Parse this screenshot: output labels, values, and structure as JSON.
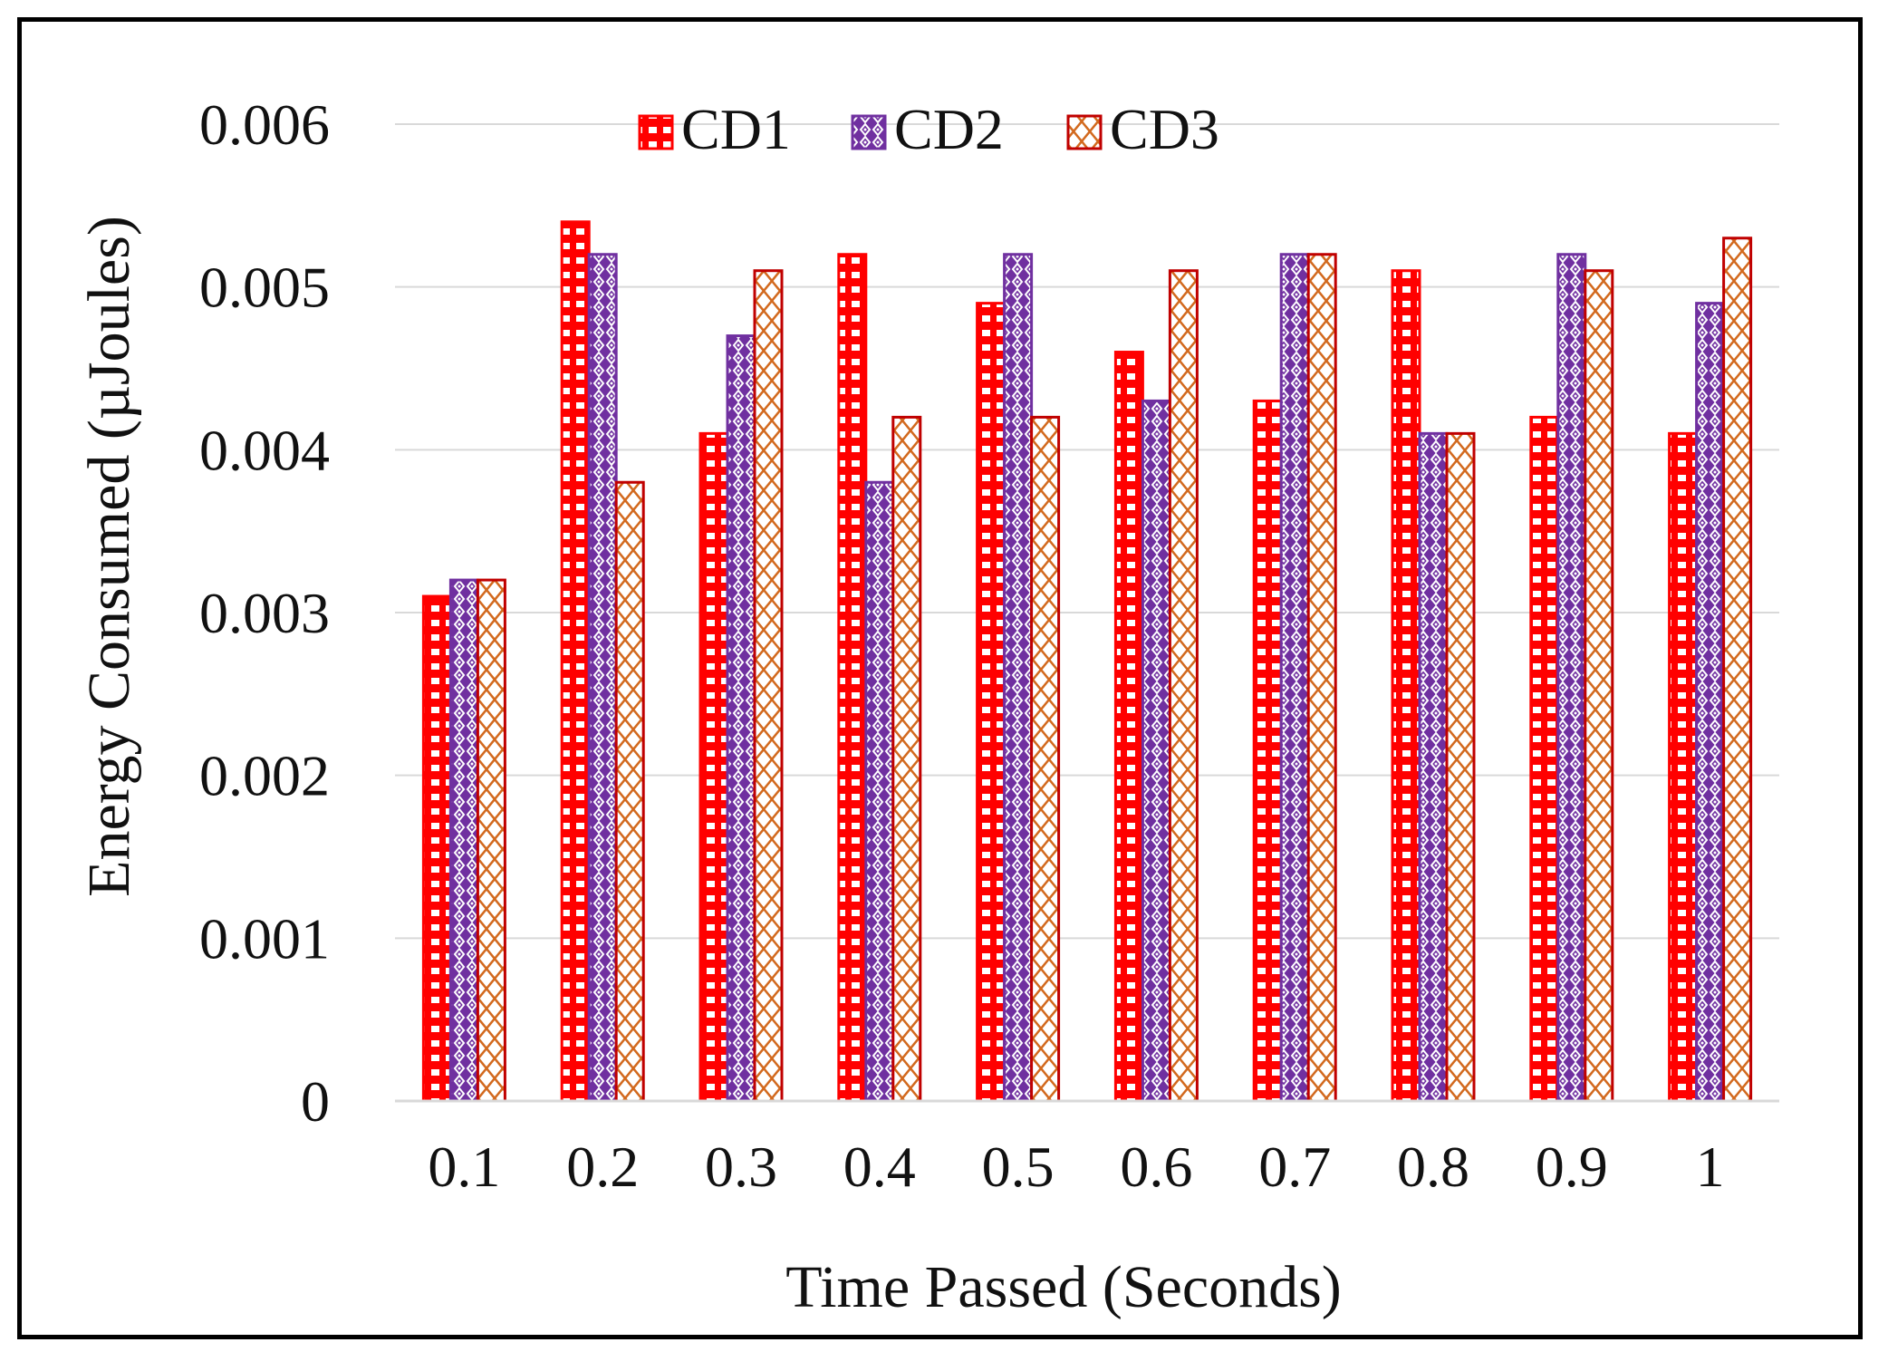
{
  "chart_data": {
    "type": "bar",
    "title": "",
    "xlabel": "Time Passed (Seconds)",
    "ylabel": "Energy Consumed  (µJoules)",
    "categories": [
      "0.1",
      "0.2",
      "0.3",
      "0.4",
      "0.5",
      "0.6",
      "0.7",
      "0.8",
      "0.9",
      "1"
    ],
    "yticks": [
      "0",
      "0.001",
      "0.002",
      "0.003",
      "0.004",
      "0.005",
      "0.006"
    ],
    "ylim": [
      0,
      0.006
    ],
    "grid": true,
    "legend_position": "top-center",
    "series": [
      {
        "name": "CD1",
        "color": "#ff0000",
        "pattern": "grid",
        "values": [
          0.0031,
          0.0054,
          0.0041,
          0.0052,
          0.0049,
          0.0046,
          0.0043,
          0.0051,
          0.0042,
          0.0041
        ]
      },
      {
        "name": "CD2",
        "color": "#7030a0",
        "pattern": "dotted-diamond",
        "values": [
          0.0032,
          0.0052,
          0.0047,
          0.0038,
          0.0052,
          0.0043,
          0.0052,
          0.0041,
          0.0052,
          0.0049
        ]
      },
      {
        "name": "CD3",
        "color": "#c00000",
        "pattern": "cross-hatch",
        "values": [
          0.0032,
          0.0038,
          0.0051,
          0.0042,
          0.0042,
          0.0051,
          0.0052,
          0.0041,
          0.0051,
          0.0053
        ]
      }
    ]
  }
}
